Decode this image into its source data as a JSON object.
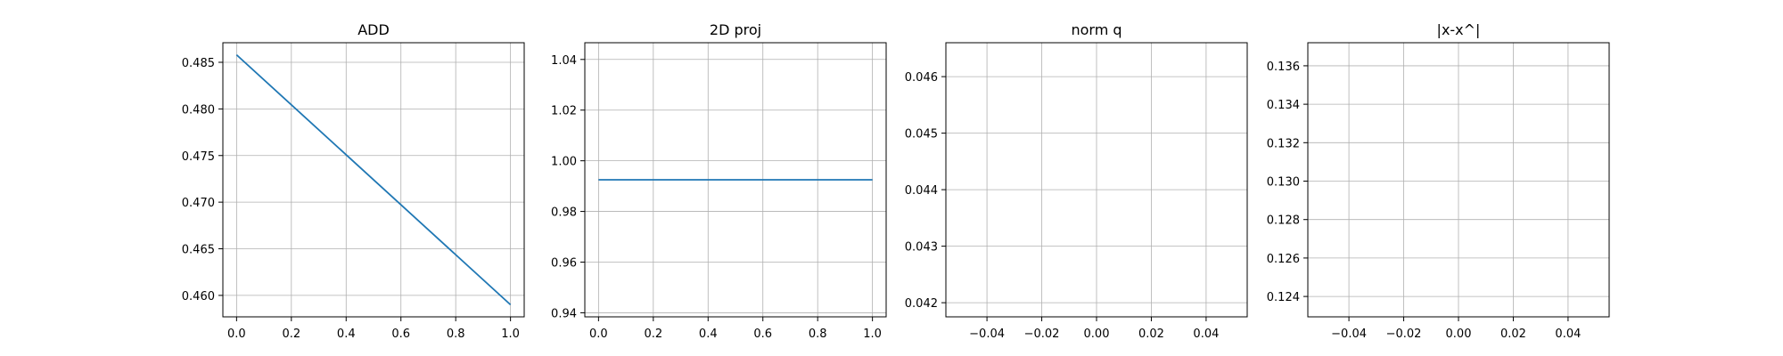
{
  "chart_data": [
    {
      "type": "line",
      "title": "ADD",
      "xlabel": "",
      "ylabel": "",
      "xlim": [
        -0.05,
        1.05
      ],
      "ylim": [
        0.4577,
        0.4871
      ],
      "xticks": [
        0.0,
        0.2,
        0.4,
        0.6,
        0.8,
        1.0
      ],
      "xtick_labels": [
        "0.0",
        "0.2",
        "0.4",
        "0.6",
        "0.8",
        "1.0"
      ],
      "yticks": [
        0.46,
        0.465,
        0.47,
        0.475,
        0.48,
        0.485
      ],
      "ytick_labels": [
        "0.460",
        "0.465",
        "0.470",
        "0.475",
        "0.480",
        "0.485"
      ],
      "grid": true,
      "series": [
        {
          "x": [
            0.0,
            1.0
          ],
          "y": [
            0.4858,
            0.459
          ],
          "color": "#1f77b4"
        }
      ]
    },
    {
      "type": "line",
      "title": "2D proj",
      "xlabel": "",
      "ylabel": "",
      "xlim": [
        -0.05,
        1.05
      ],
      "ylim": [
        0.9384,
        1.0466
      ],
      "xticks": [
        0.0,
        0.2,
        0.4,
        0.6,
        0.8,
        1.0
      ],
      "xtick_labels": [
        "0.0",
        "0.2",
        "0.4",
        "0.6",
        "0.8",
        "1.0"
      ],
      "yticks": [
        0.94,
        0.96,
        0.98,
        1.0,
        1.02,
        1.04
      ],
      "ytick_labels": [
        "0.94",
        "0.96",
        "0.98",
        "1.00",
        "1.02",
        "1.04"
      ],
      "grid": true,
      "series": [
        {
          "x": [
            0.0,
            1.0
          ],
          "y": [
            0.9925,
            0.9925
          ],
          "color": "#1f77b4"
        }
      ]
    },
    {
      "type": "line",
      "title": "norm q",
      "xlabel": "",
      "ylabel": "",
      "xlim": [
        -0.055,
        0.055
      ],
      "ylim": [
        0.04175,
        0.0466
      ],
      "xticks": [
        -0.04,
        -0.02,
        0.0,
        0.02,
        0.04
      ],
      "xtick_labels": [
        "−0.04",
        "−0.02",
        "0.00",
        "0.02",
        "0.04"
      ],
      "yticks": [
        0.042,
        0.043,
        0.044,
        0.045,
        0.046
      ],
      "ytick_labels": [
        "0.042",
        "0.043",
        "0.044",
        "0.045",
        "0.046"
      ],
      "grid": true,
      "series": []
    },
    {
      "type": "line",
      "title": "|x-x^|",
      "xlabel": "",
      "ylabel": "",
      "xlim": [
        -0.055,
        0.055
      ],
      "ylim": [
        0.12294,
        0.1372
      ],
      "xticks": [
        -0.04,
        -0.02,
        0.0,
        0.02,
        0.04
      ],
      "xtick_labels": [
        "−0.04",
        "−0.02",
        "0.00",
        "0.02",
        "0.04"
      ],
      "yticks": [
        0.124,
        0.126,
        0.128,
        0.13,
        0.132,
        0.134,
        0.136
      ],
      "ytick_labels": [
        "0.124",
        "0.126",
        "0.128",
        "0.130",
        "0.132",
        "0.134",
        "0.136"
      ],
      "grid": true,
      "series": []
    }
  ]
}
